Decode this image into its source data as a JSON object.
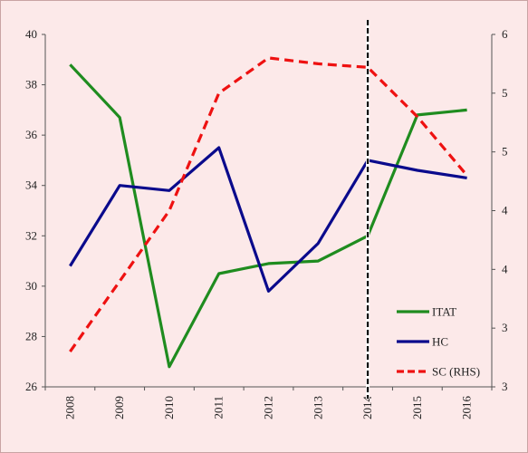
{
  "chart_data": {
    "type": "line",
    "categories": [
      "2008",
      "2009",
      "2010",
      "2011",
      "2012",
      "2013",
      "2014",
      "2015",
      "2016"
    ],
    "y_left": {
      "ticks": [
        "26",
        "28",
        "30",
        "32",
        "34",
        "36",
        "38",
        "40"
      ],
      "ylim": [
        26,
        40
      ]
    },
    "y_right": {
      "ticks": [
        "3",
        "3",
        "4",
        "4",
        "5",
        "5",
        "6"
      ],
      "ylim": [
        3,
        6
      ]
    },
    "series": [
      {
        "name": "ITAT",
        "axis": "left",
        "color": "#1f8c1f",
        "dash": "solid",
        "values": [
          38.8,
          36.7,
          26.8,
          30.5,
          30.9,
          31.0,
          32.0,
          36.8,
          37.0
        ]
      },
      {
        "name": "HC",
        "axis": "left",
        "color": "#0a0a8c",
        "dash": "solid",
        "values": [
          30.8,
          34.0,
          33.8,
          35.5,
          29.8,
          31.7,
          35.0,
          34.6,
          34.3
        ]
      },
      {
        "name": "SC (RHS)",
        "axis": "right",
        "color": "#ee1111",
        "dash": "dashed",
        "values": [
          3.3,
          3.9,
          4.5,
          5.5,
          5.8,
          5.75,
          5.72,
          5.3,
          4.8
        ]
      }
    ],
    "vline": {
      "at": "2014",
      "style": "dashed",
      "color": "#000000"
    },
    "legend_position": "lower-right",
    "grid": false
  }
}
